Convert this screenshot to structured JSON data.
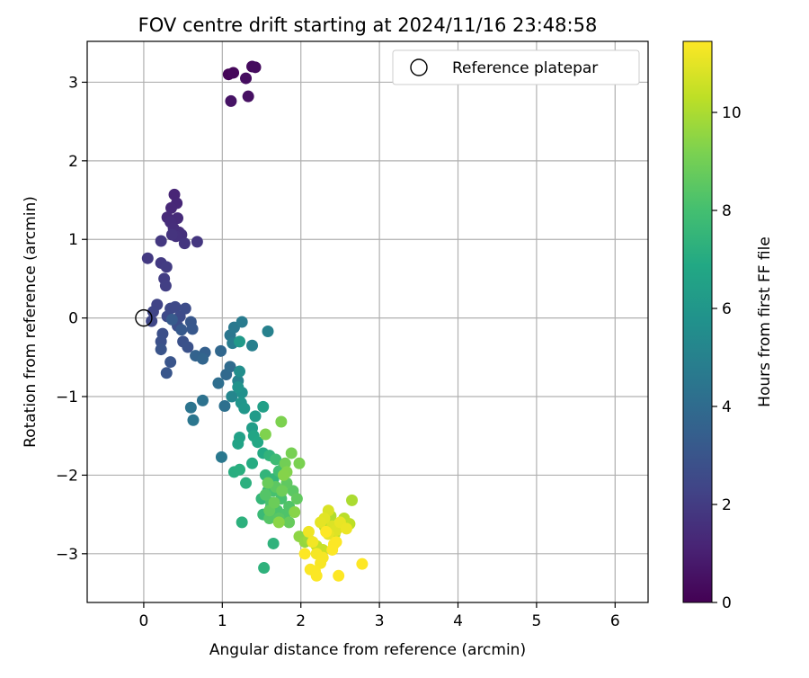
{
  "chart_data": {
    "type": "scatter",
    "title": "FOV centre drift starting at 2024/11/16 23:48:58",
    "xlabel": "Angular distance from reference (arcmin)",
    "ylabel": "Rotation from reference (arcmin)",
    "xlim": [
      -0.72,
      6.42
    ],
    "ylim": [
      -3.62,
      3.52
    ],
    "xticks": [
      0,
      1,
      2,
      3,
      4,
      5,
      6
    ],
    "yticks": [
      -3,
      -2,
      -1,
      0,
      1,
      2,
      3
    ],
    "grid": true,
    "legend_position": "top-right",
    "reference_point": {
      "label": "Reference platepar",
      "x": 0,
      "y": 0
    },
    "colorbar": {
      "label": "Hours from first FF file",
      "colormap": "viridis",
      "range": [
        0,
        11.45
      ],
      "ticks": [
        0,
        2,
        4,
        6,
        8,
        10
      ]
    },
    "columns": [
      "x",
      "y",
      "hours"
    ],
    "points": [
      [
        1.08,
        3.1,
        0.1
      ],
      [
        1.14,
        3.12,
        0.2
      ],
      [
        1.38,
        3.2,
        0.3
      ],
      [
        1.42,
        3.19,
        0.35
      ],
      [
        1.3,
        3.05,
        0.4
      ],
      [
        1.33,
        2.82,
        0.5
      ],
      [
        1.11,
        2.76,
        0.6
      ],
      [
        0.39,
        1.57,
        1.2
      ],
      [
        0.42,
        1.46,
        1.25
      ],
      [
        0.35,
        1.4,
        1.3
      ],
      [
        0.3,
        1.28,
        1.35
      ],
      [
        0.43,
        1.27,
        1.4
      ],
      [
        0.34,
        1.22,
        1.45
      ],
      [
        0.38,
        1.14,
        1.5
      ],
      [
        0.45,
        1.09,
        1.55
      ],
      [
        0.48,
        1.06,
        1.6
      ],
      [
        0.41,
        1.04,
        1.65
      ],
      [
        0.36,
        1.06,
        1.7
      ],
      [
        0.52,
        0.95,
        1.75
      ],
      [
        0.68,
        0.97,
        1.8
      ],
      [
        0.22,
        0.98,
        1.85
      ],
      [
        0.05,
        0.76,
        1.9
      ],
      [
        0.22,
        0.7,
        1.95
      ],
      [
        0.29,
        0.65,
        2.0
      ],
      [
        0.26,
        0.5,
        2.05
      ],
      [
        0.28,
        0.41,
        2.1
      ],
      [
        0.17,
        0.17,
        2.3
      ],
      [
        0.12,
        0.08,
        2.35
      ],
      [
        0.1,
        -0.04,
        2.4
      ],
      [
        0.34,
        0.12,
        2.45
      ],
      [
        0.4,
        0.14,
        2.5
      ],
      [
        0.3,
        0.02,
        2.55
      ],
      [
        0.46,
        0.02,
        2.6
      ],
      [
        0.53,
        0.12,
        2.65
      ],
      [
        0.43,
        -0.1,
        2.7
      ],
      [
        0.24,
        -0.2,
        2.75
      ],
      [
        0.22,
        -0.3,
        2.8
      ],
      [
        0.5,
        -0.3,
        2.85
      ],
      [
        0.56,
        -0.37,
        2.9
      ],
      [
        0.22,
        -0.4,
        2.95
      ],
      [
        0.34,
        -0.56,
        3.0
      ],
      [
        0.29,
        -0.7,
        3.05
      ],
      [
        0.6,
        -0.05,
        3.1
      ],
      [
        0.62,
        -0.14,
        3.15
      ],
      [
        0.48,
        -0.15,
        3.2
      ],
      [
        0.36,
        -0.02,
        3.25
      ],
      [
        0.78,
        -0.44,
        3.5
      ],
      [
        0.66,
        -0.48,
        3.6
      ],
      [
        0.75,
        -0.52,
        3.7
      ],
      [
        0.98,
        -0.42,
        3.8
      ],
      [
        1.05,
        -0.72,
        3.9
      ],
      [
        1.1,
        -0.62,
        4.0
      ],
      [
        0.95,
        -0.83,
        4.1
      ],
      [
        1.03,
        -1.12,
        4.2
      ],
      [
        0.75,
        -1.05,
        4.3
      ],
      [
        0.6,
        -1.14,
        4.4
      ],
      [
        0.63,
        -1.3,
        4.5
      ],
      [
        0.99,
        -1.77,
        4.6
      ],
      [
        1.1,
        -0.22,
        4.5
      ],
      [
        1.15,
        -0.12,
        4.6
      ],
      [
        1.25,
        -0.05,
        4.7
      ],
      [
        1.13,
        -0.32,
        4.8
      ],
      [
        1.38,
        -0.35,
        4.9
      ],
      [
        1.58,
        -0.17,
        5.0
      ],
      [
        1.2,
        -0.8,
        5.1
      ],
      [
        1.12,
        -1.0,
        5.2
      ],
      [
        1.22,
        -0.68,
        5.6
      ],
      [
        1.25,
        -0.95,
        5.7
      ],
      [
        1.2,
        -0.88,
        5.8
      ],
      [
        1.24,
        -1.08,
        5.9
      ],
      [
        1.28,
        -1.15,
        6.0
      ],
      [
        1.22,
        -0.3,
        6.1
      ],
      [
        1.42,
        -1.25,
        6.2
      ],
      [
        1.38,
        -1.4,
        6.3
      ],
      [
        1.52,
        -1.13,
        6.4
      ],
      [
        1.22,
        -1.52,
        6.5
      ],
      [
        1.2,
        -1.6,
        6.6
      ],
      [
        1.4,
        -1.5,
        6.7
      ],
      [
        1.45,
        -1.58,
        6.8
      ],
      [
        1.52,
        -1.72,
        6.9
      ],
      [
        1.38,
        -1.85,
        7.0
      ],
      [
        1.15,
        -1.96,
        7.1
      ],
      [
        1.22,
        -1.93,
        7.15
      ],
      [
        1.3,
        -2.1,
        7.2
      ],
      [
        1.25,
        -2.6,
        7.25
      ],
      [
        1.53,
        -3.18,
        7.3
      ],
      [
        1.65,
        -2.87,
        7.35
      ],
      [
        1.6,
        -1.75,
        7.4
      ],
      [
        1.55,
        -2.0,
        7.45
      ],
      [
        1.65,
        -2.05,
        7.5
      ],
      [
        1.5,
        -2.3,
        7.55
      ],
      [
        1.58,
        -2.2,
        7.6
      ],
      [
        1.62,
        -2.4,
        7.65
      ],
      [
        1.52,
        -2.5,
        7.7
      ],
      [
        1.68,
        -1.8,
        7.8
      ],
      [
        1.72,
        -1.95,
        7.9
      ],
      [
        1.78,
        -1.9,
        8.0
      ],
      [
        1.65,
        -2.2,
        8.05
      ],
      [
        1.75,
        -2.3,
        8.1
      ],
      [
        1.62,
        -2.35,
        8.15
      ],
      [
        1.7,
        -2.45,
        8.2
      ],
      [
        1.8,
        -2.5,
        8.25
      ],
      [
        1.85,
        -2.4,
        8.3
      ],
      [
        1.55,
        -2.25,
        8.35
      ],
      [
        1.6,
        -2.55,
        8.4
      ],
      [
        1.72,
        -2.55,
        8.45
      ],
      [
        1.9,
        -2.2,
        8.5
      ],
      [
        1.68,
        -2.15,
        8.55
      ],
      [
        1.82,
        -2.1,
        8.6
      ],
      [
        1.95,
        -2.3,
        8.65
      ],
      [
        1.6,
        -2.45,
        8.7
      ],
      [
        1.85,
        -2.6,
        8.75
      ],
      [
        1.58,
        -2.1,
        8.8
      ],
      [
        1.66,
        -2.35,
        8.85
      ],
      [
        1.76,
        -2.2,
        8.9
      ],
      [
        1.8,
        -1.85,
        9.0
      ],
      [
        1.88,
        -1.72,
        9.1
      ],
      [
        1.98,
        -1.85,
        9.15
      ],
      [
        1.75,
        -1.32,
        9.2
      ],
      [
        1.55,
        -1.48,
        9.25
      ],
      [
        1.82,
        -1.96,
        9.3
      ],
      [
        1.78,
        -2.0,
        9.35
      ],
      [
        1.92,
        -2.47,
        9.4
      ],
      [
        1.72,
        -2.6,
        9.45
      ],
      [
        1.98,
        -2.78,
        9.5
      ],
      [
        2.05,
        -2.85,
        9.6
      ],
      [
        2.1,
        -2.82,
        9.7
      ],
      [
        2.65,
        -2.32,
        10.0
      ],
      [
        2.38,
        -2.52,
        10.1
      ],
      [
        2.3,
        -2.65,
        10.15
      ],
      [
        2.43,
        -2.75,
        10.2
      ],
      [
        2.55,
        -2.55,
        10.25
      ],
      [
        2.62,
        -2.62,
        10.3
      ],
      [
        2.2,
        -2.9,
        10.4
      ],
      [
        2.28,
        -2.95,
        10.5
      ],
      [
        2.35,
        -2.45,
        10.8
      ],
      [
        2.4,
        -2.65,
        10.85
      ],
      [
        2.45,
        -2.7,
        10.9
      ],
      [
        2.3,
        -2.55,
        10.95
      ],
      [
        2.25,
        -2.6,
        11.0
      ],
      [
        2.35,
        -2.75,
        11.05
      ],
      [
        2.5,
        -2.6,
        11.1
      ],
      [
        2.58,
        -2.68,
        11.15
      ],
      [
        2.1,
        -2.72,
        11.2
      ],
      [
        2.15,
        -2.85,
        11.25
      ],
      [
        2.2,
        -3.0,
        11.3
      ],
      [
        2.28,
        -3.05,
        11.32
      ],
      [
        2.25,
        -3.12,
        11.35
      ],
      [
        2.18,
        -3.22,
        11.38
      ],
      [
        2.12,
        -3.2,
        11.4
      ],
      [
        2.2,
        -3.28,
        11.42
      ],
      [
        2.42,
        -2.88,
        11.43
      ],
      [
        2.45,
        -2.85,
        11.44
      ],
      [
        2.4,
        -2.95,
        11.44
      ],
      [
        2.48,
        -3.28,
        11.45
      ],
      [
        2.78,
        -3.13,
        11.45
      ],
      [
        2.32,
        -2.72,
        11.45
      ],
      [
        2.05,
        -3.0,
        11.45
      ]
    ]
  }
}
